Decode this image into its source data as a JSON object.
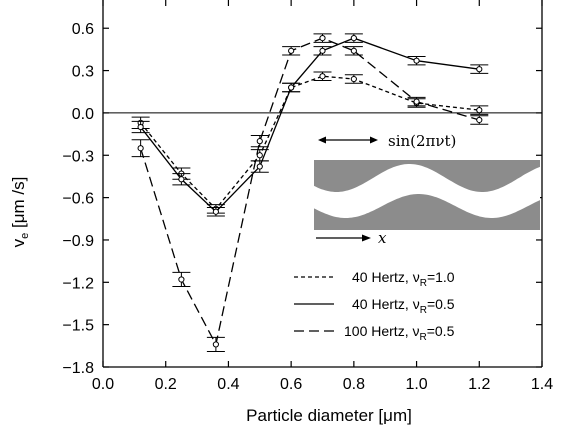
{
  "chart_data": {
    "type": "line",
    "xlabel": "Particle diameter [μm]",
    "ylabel": "v",
    "ylabel_sub": "e",
    "ylabel_unit": " [μm /s]",
    "xlim": [
      0.0,
      1.4
    ],
    "ylim": [
      -1.8,
      0.8
    ],
    "xticks": [
      0.0,
      0.2,
      0.4,
      0.6,
      0.8,
      1.0,
      1.2,
      1.4
    ],
    "xtick_labels": [
      "0.0",
      "0.2",
      "0.4",
      "0.6",
      "0.8",
      "1.0",
      "1.2",
      "1.4"
    ],
    "yticks": [
      0.6,
      0.3,
      0.0,
      -0.3,
      -0.6,
      -0.9,
      -1.2,
      -1.5,
      -1.8
    ],
    "ytick_labels": [
      "0.6",
      "0.3",
      "0.0",
      "−0.3",
      "−0.6",
      "−0.9",
      "−1.2",
      "−1.5",
      "−1.8"
    ],
    "grid": false,
    "zero_line": true,
    "legend_position": "bottom-right",
    "series": [
      {
        "name": "40 Hertz, ν_R=1.0",
        "legend_main": "40 Hertz, ν",
        "legend_sub": "R",
        "legend_tail": "=1.0",
        "dash": "short",
        "x": [
          0.12,
          0.25,
          0.36,
          0.5,
          0.6,
          0.7,
          0.8,
          1.0,
          1.2
        ],
        "y": [
          -0.07,
          -0.43,
          -0.68,
          -0.3,
          0.18,
          0.26,
          0.24,
          0.07,
          0.02
        ],
        "err": [
          0.04,
          0.04,
          0.03,
          0.04,
          0.03,
          0.03,
          0.03,
          0.03,
          0.03
        ]
      },
      {
        "name": "40 Hertz, ν_R=0.5",
        "legend_main": "40 Hertz, ν",
        "legend_sub": "R",
        "legend_tail": "=0.5",
        "dash": "solid",
        "x": [
          0.12,
          0.25,
          0.36,
          0.5,
          0.6,
          0.7,
          0.8,
          1.0,
          1.2
        ],
        "y": [
          -0.1,
          -0.47,
          -0.7,
          -0.38,
          0.18,
          0.44,
          0.53,
          0.37,
          0.31
        ],
        "err": [
          0.04,
          0.04,
          0.03,
          0.04,
          0.03,
          0.03,
          0.03,
          0.03,
          0.03
        ]
      },
      {
        "name": "100 Hertz, ν_R=0.5",
        "legend_main": "100 Hertz, ν",
        "legend_sub": "R",
        "legend_tail": "=0.5",
        "dash": "long",
        "x": [
          0.12,
          0.25,
          0.36,
          0.5,
          0.6,
          0.7,
          0.8,
          1.0,
          1.2
        ],
        "y": [
          -0.25,
          -1.18,
          -1.64,
          -0.2,
          0.44,
          0.53,
          0.44,
          0.08,
          -0.05
        ],
        "err": [
          0.06,
          0.05,
          0.05,
          0.04,
          0.03,
          0.03,
          0.03,
          0.03,
          0.03
        ]
      }
    ],
    "inset": {
      "arrow_label": "sin(2πνt)",
      "x_label": "x"
    }
  }
}
